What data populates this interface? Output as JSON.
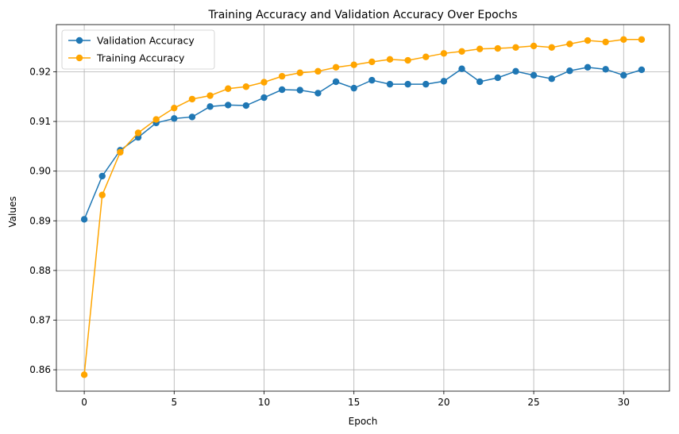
{
  "chart_data": {
    "type": "line",
    "title": "Training Accuracy and Validation Accuracy Over Epochs",
    "xlabel": "Epoch",
    "ylabel": "Values",
    "x": [
      0,
      1,
      2,
      3,
      4,
      5,
      6,
      7,
      8,
      9,
      10,
      11,
      12,
      13,
      14,
      15,
      16,
      17,
      18,
      19,
      20,
      21,
      22,
      23,
      24,
      25,
      26,
      27,
      28,
      29,
      30,
      31
    ],
    "xlim": [
      -1.55,
      32.55
    ],
    "ylim": [
      0.8557,
      0.9295
    ],
    "xticks": [
      0,
      5,
      10,
      15,
      20,
      25,
      30
    ],
    "xtick_labels": [
      "0",
      "5",
      "10",
      "15",
      "20",
      "25",
      "30"
    ],
    "yticks": [
      0.86,
      0.87,
      0.88,
      0.89,
      0.9,
      0.91,
      0.92
    ],
    "ytick_labels": [
      "0.86",
      "0.87",
      "0.88",
      "0.89",
      "0.90",
      "0.91",
      "0.92"
    ],
    "grid": true,
    "legend_position": "top-left",
    "series": [
      {
        "name": "Validation Accuracy",
        "color": "#1f77b4",
        "marker": "circle",
        "values": [
          0.8903,
          0.899,
          0.9042,
          0.9068,
          0.9097,
          0.9106,
          0.9109,
          0.913,
          0.9133,
          0.9132,
          0.9148,
          0.9164,
          0.9163,
          0.9157,
          0.918,
          0.9167,
          0.9183,
          0.9175,
          0.9175,
          0.9175,
          0.9181,
          0.9206,
          0.918,
          0.9188,
          0.9201,
          0.9193,
          0.9186,
          0.9202,
          0.9209,
          0.9205,
          0.9193,
          0.9204
        ]
      },
      {
        "name": "Training Accuracy",
        "color": "#ffa500",
        "marker": "circle",
        "values": [
          0.859,
          0.8952,
          0.9038,
          0.9077,
          0.9104,
          0.9127,
          0.9145,
          0.9152,
          0.9166,
          0.917,
          0.9179,
          0.9191,
          0.9198,
          0.9201,
          0.9209,
          0.9214,
          0.922,
          0.9225,
          0.9223,
          0.923,
          0.9237,
          0.9241,
          0.9246,
          0.9247,
          0.9249,
          0.9252,
          0.9249,
          0.9256,
          0.9263,
          0.926,
          0.9265,
          0.9265
        ]
      }
    ]
  }
}
